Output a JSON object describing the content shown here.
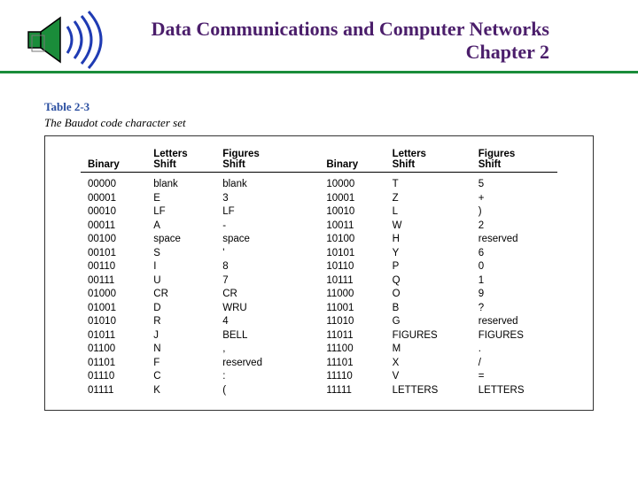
{
  "header": {
    "title_line1": "Data Communications and Computer Networks",
    "title_line2": "Chapter 2",
    "title_color": "#4b1e6b",
    "rule_color": "#1a8c3a",
    "speaker_body_color": "#1a8c3a",
    "sound_wave_color": "#1f3bb3"
  },
  "table": {
    "label": "Table 2-3",
    "label_color": "#2a4ea0",
    "caption": "The Baudot code character set",
    "headers": {
      "binary": "Binary",
      "letters": "Letters",
      "figures": "Figures",
      "shift": "Shift"
    },
    "rows_left": [
      {
        "bin": "00000",
        "let": "blank",
        "fig": "blank"
      },
      {
        "bin": "00001",
        "let": "E",
        "fig": "3"
      },
      {
        "bin": "00010",
        "let": "LF",
        "fig": "LF"
      },
      {
        "bin": "00011",
        "let": "A",
        "fig": "-"
      },
      {
        "bin": "00100",
        "let": "space",
        "fig": "space"
      },
      {
        "bin": "00101",
        "let": "S",
        "fig": "'"
      },
      {
        "bin": "00110",
        "let": "I",
        "fig": "8"
      },
      {
        "bin": "00111",
        "let": "U",
        "fig": "7"
      },
      {
        "bin": "01000",
        "let": "CR",
        "fig": "CR"
      },
      {
        "bin": "01001",
        "let": "D",
        "fig": "WRU"
      },
      {
        "bin": "01010",
        "let": "R",
        "fig": "4"
      },
      {
        "bin": "01011",
        "let": "J",
        "fig": "BELL"
      },
      {
        "bin": "01100",
        "let": "N",
        "fig": ","
      },
      {
        "bin": "01101",
        "let": "F",
        "fig": "reserved"
      },
      {
        "bin": "01110",
        "let": "C",
        "fig": ":"
      },
      {
        "bin": "01111",
        "let": "K",
        "fig": "("
      }
    ],
    "rows_right": [
      {
        "bin": "10000",
        "let": "T",
        "fig": "5"
      },
      {
        "bin": "10001",
        "let": "Z",
        "fig": "+"
      },
      {
        "bin": "10010",
        "let": "L",
        "fig": ")"
      },
      {
        "bin": "10011",
        "let": "W",
        "fig": "2"
      },
      {
        "bin": "10100",
        "let": "H",
        "fig": "reserved"
      },
      {
        "bin": "10101",
        "let": "Y",
        "fig": "6"
      },
      {
        "bin": "10110",
        "let": "P",
        "fig": "0"
      },
      {
        "bin": "10111",
        "let": "Q",
        "fig": "1"
      },
      {
        "bin": "11000",
        "let": "O",
        "fig": "9"
      },
      {
        "bin": "11001",
        "let": "B",
        "fig": "?"
      },
      {
        "bin": "11010",
        "let": "G",
        "fig": "reserved"
      },
      {
        "bin": "11011",
        "let": "FIGURES",
        "fig": "FIGURES"
      },
      {
        "bin": "11100",
        "let": "M",
        "fig": "."
      },
      {
        "bin": "11101",
        "let": "X",
        "fig": "/"
      },
      {
        "bin": "11110",
        "let": "V",
        "fig": "="
      },
      {
        "bin": "11111",
        "let": "LETTERS",
        "fig": "LETTERS"
      }
    ]
  }
}
